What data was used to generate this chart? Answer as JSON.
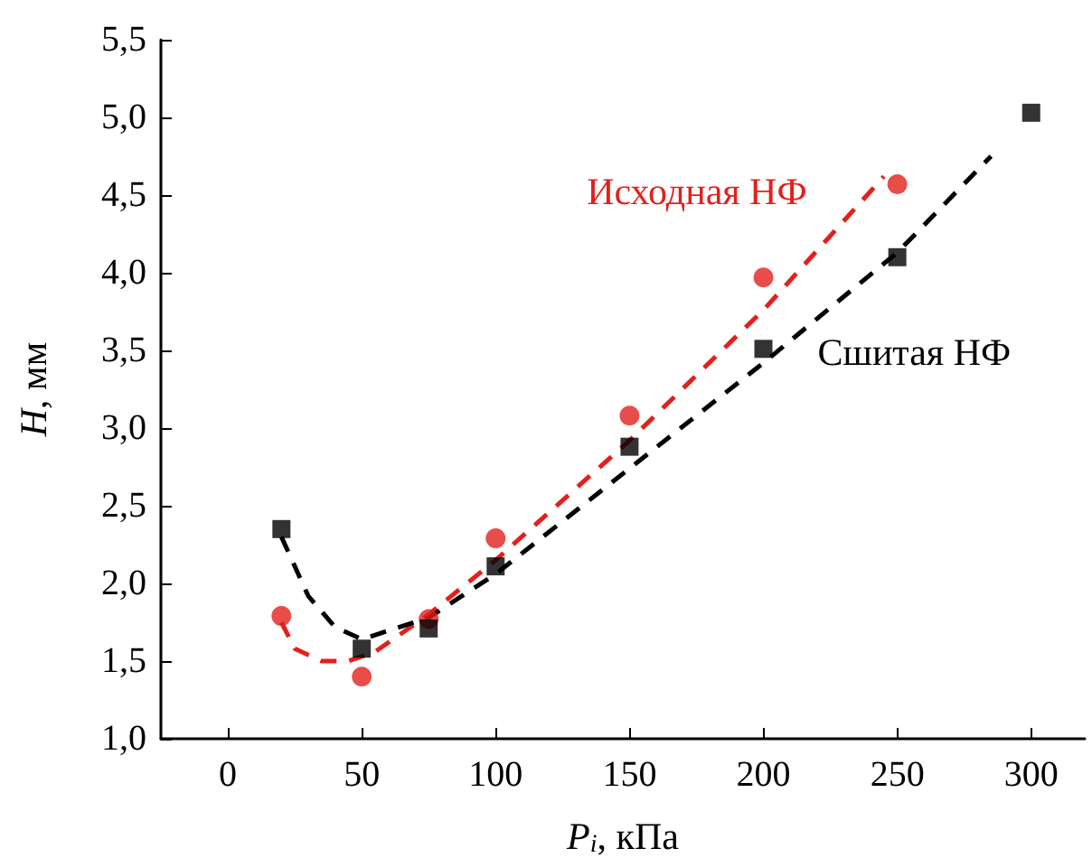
{
  "chart_data": {
    "type": "scatter",
    "xlabel": "P$_{i}$, кПа",
    "ylabel": "H, мм",
    "xlim": [
      -25,
      320
    ],
    "xticks": [
      0,
      50,
      100,
      150,
      200,
      250,
      300
    ],
    "ylim": [
      1,
      5.5
    ],
    "yticks": [
      {
        "value": 1,
        "label": "1,0"
      },
      {
        "value": 1.5,
        "label": "1,5"
      },
      {
        "value": 2,
        "label": "2,0"
      },
      {
        "value": 2.5,
        "label": "2,5"
      },
      {
        "value": 3,
        "label": "3,0"
      },
      {
        "value": 3.5,
        "label": "3,5"
      },
      {
        "value": 4,
        "label": "4,0"
      },
      {
        "value": 4.5,
        "label": "4,5"
      },
      {
        "value": 5,
        "label": "5,0"
      },
      {
        "value": 5.5,
        "label": "5,5"
      }
    ],
    "grid": false,
    "legend": false,
    "series": [
      {
        "name": "Исходная НФ",
        "color": "#e3201b",
        "marker": "circle",
        "x": [
          20,
          50,
          75,
          100,
          150,
          200,
          250
        ],
        "values": [
          1.79,
          1.4,
          1.77,
          2.29,
          3.08,
          3.97,
          4.57
        ]
      },
      {
        "name": "Сшитая НФ",
        "color": "#000000",
        "marker": "square",
        "x": [
          20,
          50,
          75,
          100,
          150,
          200,
          250,
          300
        ],
        "values": [
          2.35,
          1.58,
          1.71,
          2.11,
          2.88,
          3.51,
          4.1,
          5.03
        ]
      },
      {
        "type": "line",
        "color": "#e3201b",
        "line_style": "dashed",
        "x": [
          20,
          25,
          35,
          45,
          55,
          75,
          100,
          150,
          200,
          245
        ],
        "values": [
          1.75,
          1.58,
          1.5,
          1.5,
          1.56,
          1.8,
          2.15,
          2.92,
          3.76,
          4.62
        ]
      },
      {
        "type": "line",
        "color": "#000000",
        "line_style": "dashed",
        "x": [
          20,
          30,
          40,
          50,
          75,
          100,
          150,
          200,
          250,
          285
        ],
        "values": [
          2.3,
          1.92,
          1.72,
          1.64,
          1.78,
          2.06,
          2.74,
          3.42,
          4.13,
          4.75
        ]
      }
    ]
  }
}
